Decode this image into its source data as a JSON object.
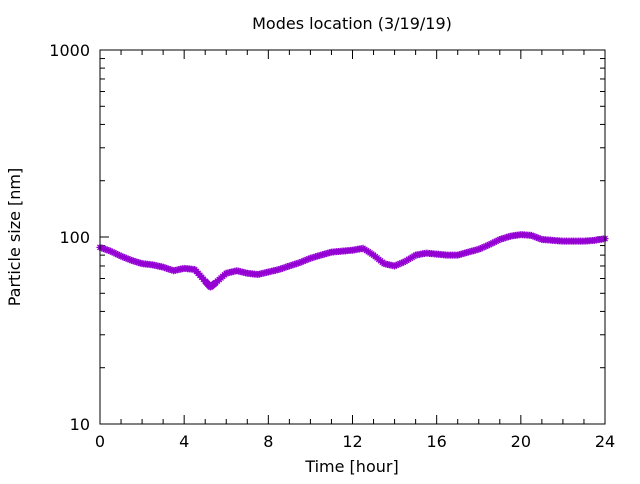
{
  "chart_data": {
    "type": "line",
    "title": "Modes location (3/19/19)",
    "xlabel": "Time [hour]",
    "ylabel": "Particle size [nm]",
    "xlim": [
      0,
      24
    ],
    "ylim": [
      10,
      1000
    ],
    "yscale": "log",
    "x_ticks": [
      "0",
      "4",
      "8",
      "12",
      "16",
      "20",
      "24"
    ],
    "y_ticks": [
      "10",
      "100",
      "1000"
    ],
    "grid": false,
    "legend": "none",
    "series": [
      {
        "color": "#9400d3",
        "marker": "asterisk",
        "x": [
          0,
          0.5,
          1,
          1.5,
          2,
          2.5,
          3,
          3.5,
          4,
          4.5,
          5,
          5.25,
          5.5,
          6,
          6.5,
          7,
          7.5,
          8,
          8.5,
          9,
          9.5,
          10,
          10.5,
          11,
          11.5,
          12,
          12.5,
          13,
          13.5,
          14,
          14.5,
          15,
          15.5,
          16,
          16.5,
          17,
          17.5,
          18,
          18.5,
          19,
          19.5,
          20,
          20.5,
          21,
          21.5,
          22,
          22.5,
          23,
          23.5,
          24
        ],
        "y": [
          88,
          84,
          79,
          75,
          72,
          71,
          69,
          66,
          68,
          67,
          58,
          54,
          57,
          64,
          66,
          64,
          63,
          65,
          67,
          70,
          73,
          77,
          80,
          83,
          84,
          85,
          87,
          80,
          72,
          70,
          74,
          80,
          82,
          81,
          80,
          80,
          83,
          86,
          91,
          97,
          101,
          103,
          102,
          97,
          96,
          95,
          95,
          95,
          96,
          98
        ]
      }
    ]
  }
}
